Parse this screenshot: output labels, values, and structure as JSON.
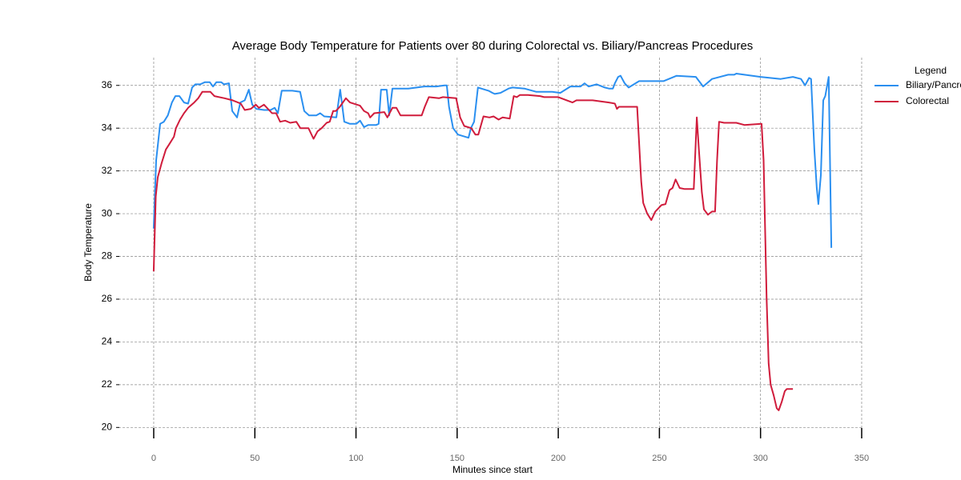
{
  "chart_data": {
    "type": "line",
    "title": "Average Body Temperature for Patients over 80 during Colorectal vs. Biliary/Pancreas Procedures",
    "x_label": "Minutes since start",
    "y_label": "Body Temperature",
    "legend_title": "Legend",
    "legend_position": "outside-right",
    "grid": true,
    "xlim": [
      -17.4,
      350.8
    ],
    "ylim": [
      19.6,
      37.3
    ],
    "xticks": [
      0,
      50,
      100,
      150,
      200,
      250,
      300,
      350
    ],
    "yticks": [
      20,
      22,
      24,
      26,
      28,
      30,
      32,
      34,
      36
    ],
    "series": [
      {
        "name": "Biliary/Pancreas",
        "color": "#2a8ff0",
        "x": [
          0,
          1.2,
          3.2,
          5,
          7,
          9,
          10.7,
          12.7,
          15,
          17,
          19,
          20.6,
          23,
          25.3,
          27.7,
          29.3,
          31,
          33.3,
          34.8,
          37.2,
          38.8,
          41.2,
          42.8,
          45,
          47,
          48.7,
          50.7,
          54.6,
          57.8,
          59.8,
          61.4,
          63.3,
          68.5,
          72.4,
          74.4,
          76.8,
          80.4,
          82.3,
          84.3,
          90.3,
          92.2,
          94.2,
          97,
          100.2,
          102,
          104,
          106,
          110,
          111.2,
          112.4,
          115.2,
          116.4,
          118,
          125.9,
          133.8,
          139.7,
          143.7,
          144.9,
          146,
          148,
          150.4,
          155.6,
          156.8,
          158.4,
          160.3,
          165.5,
          167.5,
          168.6,
          171.4,
          175.4,
          177.4,
          183.3,
          189.2,
          197,
          201,
          206,
          211,
          213,
          215,
          219,
          223,
          225,
          227,
          228,
          229.6,
          230.8,
          232.8,
          234.8,
          240,
          252,
          258.5,
          268,
          271.6,
          276,
          284,
          287,
          288,
          300,
          310,
          316,
          320,
          322,
          324,
          325,
          326.6,
          327.8,
          328.6,
          329.8,
          331,
          332,
          333.7,
          335
        ],
        "values": [
          29.3,
          32.5,
          34.2,
          34.3,
          34.6,
          35.2,
          35.5,
          35.5,
          35.2,
          35.15,
          35.9,
          36.05,
          36.05,
          36.15,
          36.15,
          35.95,
          36.15,
          36.15,
          36.05,
          36.1,
          34.8,
          34.5,
          35.2,
          35.3,
          35.8,
          35.1,
          34.9,
          34.85,
          34.85,
          34.95,
          34.7,
          35.75,
          35.75,
          35.7,
          34.8,
          34.6,
          34.6,
          34.7,
          34.55,
          34.5,
          35.8,
          34.3,
          34.2,
          34.2,
          34.35,
          34.05,
          34.15,
          34.15,
          34.2,
          35.8,
          35.8,
          34.6,
          35.85,
          35.85,
          35.95,
          35.95,
          36.0,
          36.0,
          35.0,
          34.0,
          33.7,
          33.55,
          34.0,
          34.3,
          35.9,
          35.75,
          35.65,
          35.6,
          35.65,
          35.85,
          35.9,
          35.85,
          35.7,
          35.7,
          35.65,
          35.95,
          35.95,
          36.1,
          35.95,
          36.05,
          35.9,
          35.85,
          35.85,
          36.1,
          36.4,
          36.45,
          36.1,
          35.9,
          36.2,
          36.2,
          36.45,
          36.4,
          35.95,
          36.3,
          36.5,
          36.5,
          36.55,
          36.4,
          36.3,
          36.4,
          36.3,
          36.0,
          36.35,
          36.3,
          33.0,
          31.2,
          30.45,
          31.8,
          35.3,
          35.5,
          36.4,
          28.4
        ]
      },
      {
        "name": "Colorectal",
        "color": "#d01c3c",
        "x": [
          0,
          1,
          2,
          4,
          6,
          8,
          10,
          11,
          13,
          15,
          17,
          20,
          22,
          24,
          28,
          29,
          30,
          35,
          39,
          43,
          45,
          48,
          50.5,
          52,
          54.5,
          58.5,
          60.5,
          62.5,
          65,
          67.5,
          70.5,
          72.5,
          76.5,
          79,
          81,
          83,
          85.5,
          87,
          88.7,
          90,
          92,
          95,
          97,
          102,
          104,
          106,
          107,
          109,
          114,
          115.5,
          118,
          120,
          122,
          132.5,
          134,
          136,
          141,
          143,
          149.5,
          151.5,
          153.5,
          157,
          159,
          160.5,
          163,
          166,
          168,
          170.5,
          172.5,
          176,
          178,
          179.5,
          181,
          185,
          191,
          193,
          200,
          207,
          209,
          217,
          225,
          228,
          229,
          230,
          239,
          241,
          242,
          244,
          246,
          248,
          251,
          253,
          255,
          256.5,
          258,
          260,
          262.5,
          267,
          268.5,
          269.5,
          271,
          272,
          274,
          276,
          277.5,
          278.5,
          279.5,
          282,
          288,
          292,
          300.5,
          301.5,
          303,
          304,
          305,
          306.5,
          308,
          309,
          310.5,
          312,
          313,
          316
        ],
        "values": [
          27.3,
          30.8,
          31.7,
          32.4,
          33.0,
          33.3,
          33.6,
          34.0,
          34.4,
          34.7,
          34.95,
          35.2,
          35.4,
          35.7,
          35.7,
          35.6,
          35.5,
          35.4,
          35.3,
          35.15,
          34.85,
          34.9,
          35.1,
          34.95,
          35.1,
          34.7,
          34.7,
          34.3,
          34.35,
          34.25,
          34.3,
          34.0,
          34.0,
          33.5,
          33.85,
          34.0,
          34.25,
          34.3,
          34.8,
          34.8,
          35.0,
          35.4,
          35.2,
          35.05,
          34.8,
          34.7,
          34.5,
          34.7,
          34.75,
          34.5,
          34.95,
          34.95,
          34.6,
          34.6,
          35.0,
          35.45,
          35.4,
          35.45,
          35.4,
          34.5,
          34.1,
          34.0,
          33.7,
          33.7,
          34.55,
          34.5,
          34.55,
          34.4,
          34.5,
          34.45,
          35.5,
          35.45,
          35.55,
          35.55,
          35.5,
          35.45,
          35.45,
          35.2,
          35.3,
          35.3,
          35.2,
          35.15,
          34.9,
          35.0,
          35.0,
          31.5,
          30.5,
          30.0,
          29.7,
          30.1,
          30.4,
          30.45,
          31.1,
          31.2,
          31.6,
          31.2,
          31.15,
          31.15,
          34.5,
          33.0,
          31.0,
          30.2,
          29.95,
          30.1,
          30.1,
          32.5,
          34.3,
          34.25,
          34.25,
          34.15,
          34.2,
          32.5,
          26.0,
          23.0,
          22.0,
          21.5,
          20.9,
          20.8,
          21.2,
          21.7,
          21.8,
          21.8
        ]
      }
    ]
  }
}
